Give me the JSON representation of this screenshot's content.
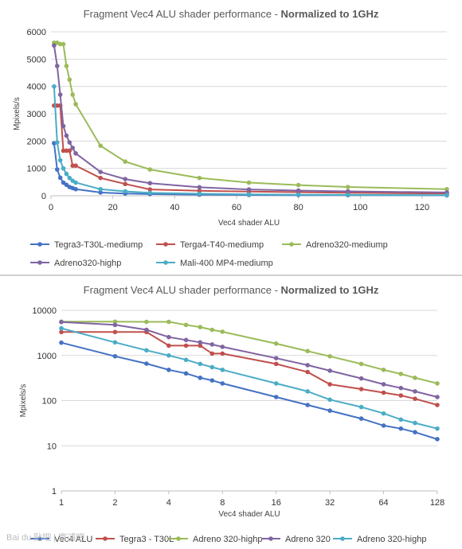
{
  "chart_data": [
    {
      "type": "line",
      "title_main": "Fragment Vec4 ALU shader performance - ",
      "title_bold": "Normalized to 1GHz",
      "xlabel": "Vec4 shader ALU",
      "ylabel": "Mpixels/s",
      "xlim": [
        0,
        128
      ],
      "ylim": [
        0,
        6000
      ],
      "xticks": [
        0,
        20,
        40,
        60,
        80,
        100,
        120
      ],
      "yticks": [
        0,
        1000,
        2000,
        3000,
        4000,
        5000,
        6000
      ],
      "grid": "horizontal",
      "legend_position": "bottom",
      "series": [
        {
          "name": "Tegra3-T30L-mediump",
          "color": "#4472c4",
          "x": [
            1,
            2,
            3,
            4,
            5,
            6,
            7,
            8,
            16,
            24,
            32,
            48,
            64,
            80,
            96,
            128
          ],
          "values": [
            1920,
            960,
            660,
            480,
            400,
            320,
            280,
            240,
            120,
            80,
            60,
            40,
            28,
            24,
            20,
            14
          ]
        },
        {
          "name": "Terga4-T40-mediump",
          "color": "#c0504d",
          "x": [
            1,
            2,
            3,
            4,
            5,
            6,
            7,
            8,
            16,
            24,
            32,
            48,
            64,
            80,
            96,
            128
          ],
          "values": [
            3300,
            3300,
            3300,
            1650,
            1650,
            1650,
            1100,
            1100,
            650,
            430,
            230,
            180,
            150,
            130,
            110,
            80
          ]
        },
        {
          "name": "Adreno320-mediump",
          "color": "#9bbb59",
          "x": [
            1,
            2,
            3,
            4,
            5,
            6,
            7,
            8,
            16,
            24,
            32,
            48,
            64,
            80,
            96,
            128
          ],
          "values": [
            5600,
            5600,
            5550,
            5550,
            4750,
            4250,
            3700,
            3350,
            1830,
            1250,
            960,
            650,
            480,
            390,
            320,
            240
          ]
        },
        {
          "name": "Adreno320-highp",
          "color": "#8064a2",
          "x": [
            1,
            2,
            3,
            4,
            5,
            6,
            7,
            8,
            16,
            24,
            32,
            48,
            64,
            80,
            96,
            128
          ],
          "values": [
            5500,
            4750,
            3700,
            2550,
            2200,
            1950,
            1750,
            1550,
            870,
            610,
            460,
            310,
            230,
            190,
            160,
            120
          ]
        },
        {
          "name": "Mali-400 MP4-mediump",
          "color": "#4bacc6",
          "x": [
            1,
            2,
            3,
            4,
            5,
            6,
            7,
            8,
            16,
            24,
            32,
            48,
            64,
            80,
            96,
            128
          ],
          "values": [
            4000,
            1950,
            1300,
            1000,
            800,
            650,
            550,
            480,
            240,
            160,
            105,
            72,
            52,
            38,
            32,
            24
          ]
        }
      ]
    },
    {
      "type": "line",
      "title_main": "Fragment Vec4 ALU shader performance - ",
      "title_bold": "Normalized to 1GHz",
      "xlabel": "Vec4 shader ALU",
      "ylabel": "Mpixels/s",
      "xscale": "log2",
      "yscale": "log10",
      "xlim": [
        1,
        128
      ],
      "ylim": [
        1,
        10000
      ],
      "xticks": [
        1,
        2,
        4,
        8,
        16,
        32,
        64,
        128
      ],
      "yticks": [
        1,
        10,
        100,
        1000,
        10000
      ],
      "grid": "horizontal",
      "legend_position": "bottom",
      "series": [
        {
          "name": "Vec4 ALU",
          "color": "#4472c4",
          "x": [
            1,
            2,
            3,
            4,
            5,
            6,
            7,
            8,
            16,
            24,
            32,
            48,
            64,
            80,
            96,
            128
          ],
          "values": [
            1920,
            960,
            660,
            480,
            400,
            320,
            280,
            240,
            120,
            80,
            60,
            40,
            28,
            24,
            20,
            14
          ]
        },
        {
          "name": "Tegra3 - T30L",
          "color": "#c0504d",
          "x": [
            1,
            2,
            3,
            4,
            5,
            6,
            7,
            8,
            16,
            24,
            32,
            48,
            64,
            80,
            96,
            128
          ],
          "values": [
            3300,
            3300,
            3300,
            1650,
            1650,
            1650,
            1100,
            1100,
            650,
            430,
            230,
            180,
            150,
            130,
            110,
            80
          ]
        },
        {
          "name": "Adreno 320-highp",
          "color": "#9bbb59",
          "x": [
            1,
            2,
            3,
            4,
            5,
            6,
            7,
            8,
            16,
            24,
            32,
            48,
            64,
            80,
            96,
            128
          ],
          "values": [
            5600,
            5600,
            5550,
            5550,
            4750,
            4250,
            3700,
            3350,
            1830,
            1250,
            960,
            650,
            480,
            390,
            320,
            240
          ]
        },
        {
          "name": "Adreno 320",
          "color": "#8064a2",
          "x": [
            1,
            2,
            3,
            4,
            5,
            6,
            7,
            8,
            16,
            24,
            32,
            48,
            64,
            80,
            96,
            128
          ],
          "values": [
            5500,
            4750,
            3700,
            2550,
            2200,
            1950,
            1750,
            1550,
            870,
            610,
            460,
            310,
            230,
            190,
            160,
            120
          ]
        },
        {
          "name": "Adreno 320-highp",
          "color": "#4bacc6",
          "x": [
            1,
            2,
            3,
            4,
            5,
            6,
            7,
            8,
            16,
            24,
            32,
            48,
            64,
            80,
            96,
            128
          ],
          "values": [
            4000,
            1950,
            1300,
            1000,
            800,
            650,
            550,
            480,
            240,
            160,
            105,
            72,
            52,
            38,
            32,
            24
          ]
        }
      ]
    }
  ],
  "watermark": "Bai du 贴吧 | 富浦吧"
}
